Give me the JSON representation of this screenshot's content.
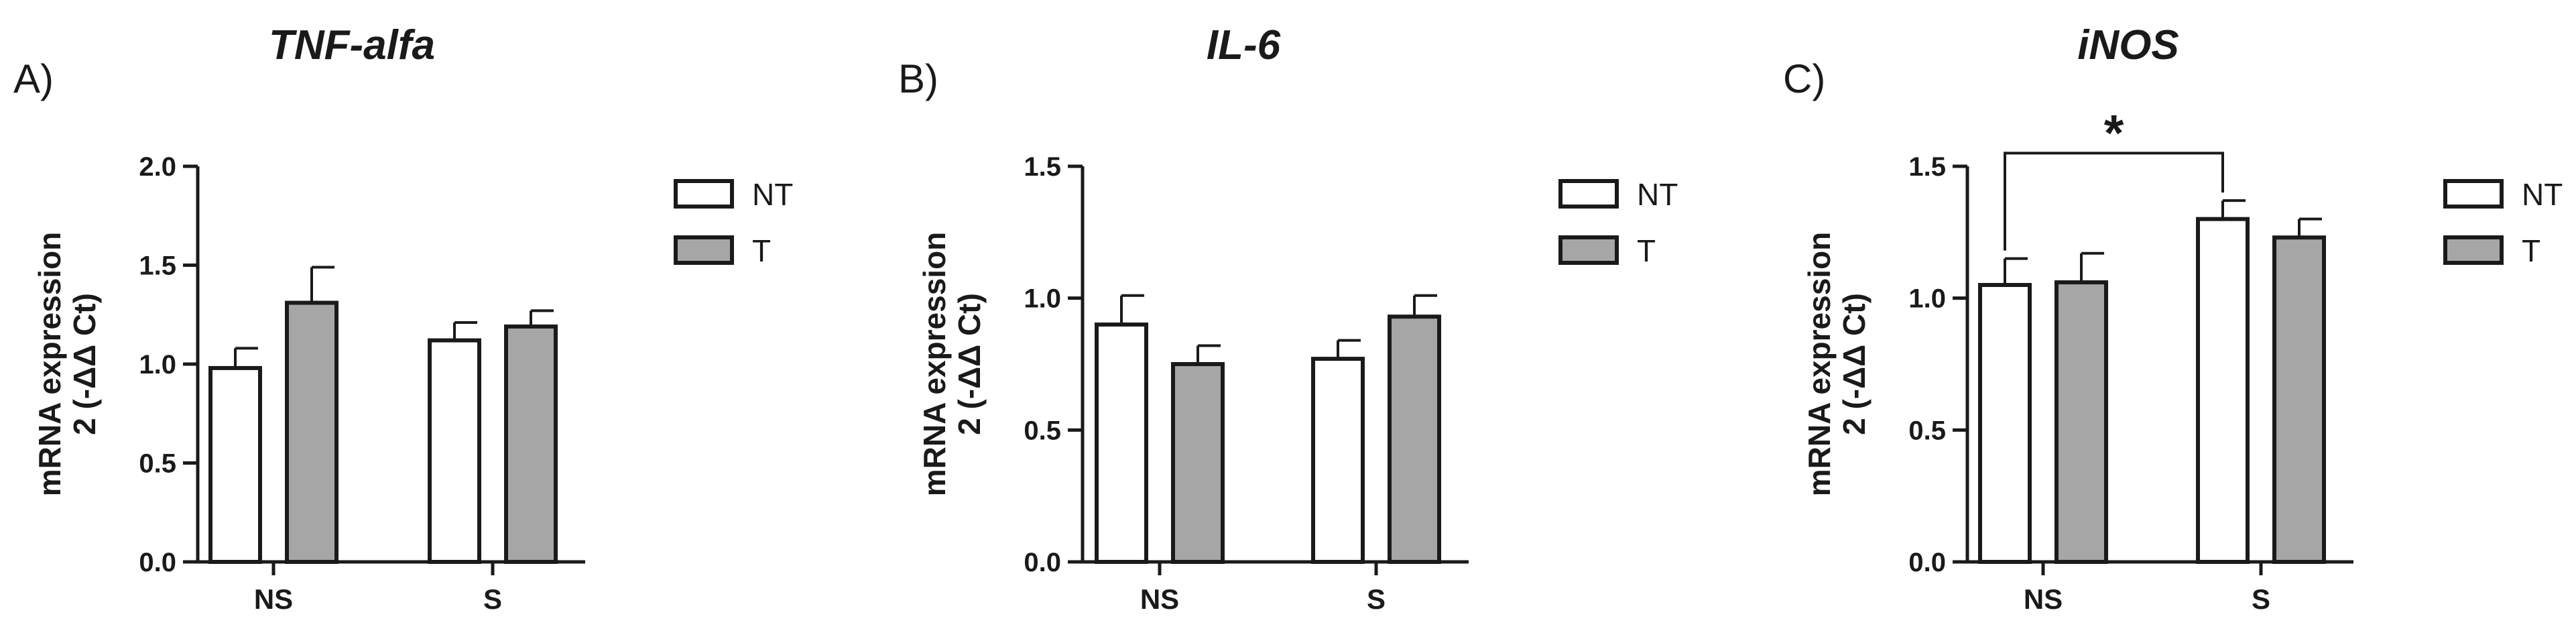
{
  "colors": {
    "NT": "#ffffff",
    "T": "#a6a6a6",
    "stroke": "#1a1a1a"
  },
  "chart_data": [
    {
      "type": "bar",
      "panel_label": "A)",
      "title": "TNF-alfa",
      "ylabel": [
        "mRNA expression",
        "2 (-ΔΔ Ct)"
      ],
      "categories": [
        "NS",
        "S"
      ],
      "ylim": [
        0,
        2.0
      ],
      "yticks": [
        "0.0",
        "0.5",
        "1.0",
        "1.5",
        "2.0"
      ],
      "grid": false,
      "legend_position": "right",
      "series": [
        {
          "name": "NT",
          "values": [
            0.98,
            1.12
          ],
          "errors": [
            0.1,
            0.09
          ]
        },
        {
          "name": "T",
          "values": [
            1.31,
            1.19
          ],
          "errors": [
            0.18,
            0.08
          ]
        }
      ],
      "annotations": []
    },
    {
      "type": "bar",
      "panel_label": "B)",
      "title": "IL-6",
      "ylabel": [
        "mRNA expression",
        "2 (-ΔΔ Ct)"
      ],
      "categories": [
        "NS",
        "S"
      ],
      "ylim": [
        0,
        1.5
      ],
      "yticks": [
        "0.0",
        "0.5",
        "1.0",
        "1.5"
      ],
      "grid": false,
      "legend_position": "right",
      "series": [
        {
          "name": "NT",
          "values": [
            0.9,
            0.77
          ],
          "errors": [
            0.11,
            0.07
          ]
        },
        {
          "name": "T",
          "values": [
            0.75,
            0.93
          ],
          "errors": [
            0.07,
            0.08
          ]
        }
      ],
      "annotations": []
    },
    {
      "type": "bar",
      "panel_label": "C)",
      "title": "iNOS",
      "ylabel": [
        "mRNA expression",
        "2 (-ΔΔ Ct)"
      ],
      "categories": [
        "NS",
        "S"
      ],
      "ylim": [
        0,
        1.5
      ],
      "yticks": [
        "0.0",
        "0.5",
        "1.0",
        "1.5"
      ],
      "grid": false,
      "legend_position": "right",
      "series": [
        {
          "name": "NT",
          "values": [
            1.05,
            1.3
          ],
          "errors": [
            0.1,
            0.07
          ]
        },
        {
          "name": "T",
          "values": [
            1.06,
            1.23
          ],
          "errors": [
            0.11,
            0.07
          ]
        }
      ],
      "annotations": [
        {
          "type": "significance",
          "text": "*",
          "from": {
            "category": "NS",
            "series": "NT"
          },
          "to": {
            "category": "S",
            "series": "NT"
          },
          "level": 1.55
        }
      ]
    }
  ]
}
